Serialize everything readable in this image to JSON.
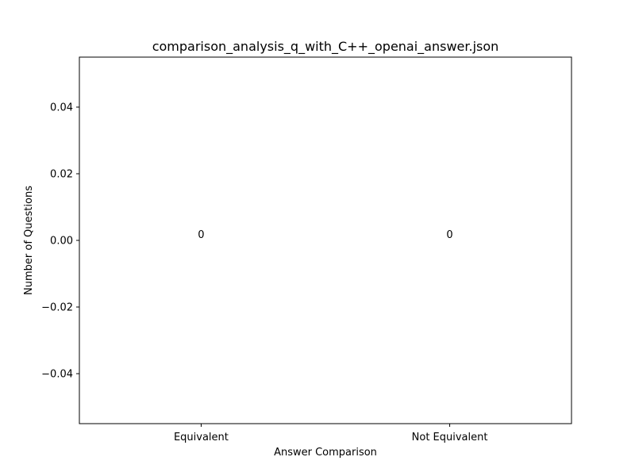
{
  "chart_data": {
    "type": "bar",
    "title": "comparison_analysis_q_with_C++_openai_answer.json",
    "xlabel": "Answer Comparison",
    "ylabel": "Number of Questions",
    "categories": [
      "Equivalent",
      "Not Equivalent"
    ],
    "values": [
      0,
      0
    ],
    "data_labels": [
      "0",
      "0"
    ],
    "ylim": [
      -0.055,
      0.055
    ],
    "yticks": [
      -0.04,
      -0.02,
      0.0,
      0.02,
      0.04
    ],
    "ytick_labels": [
      "−0.04",
      "−0.02",
      "0.00",
      "0.02",
      "0.04"
    ],
    "grid": false,
    "legend": "none"
  }
}
